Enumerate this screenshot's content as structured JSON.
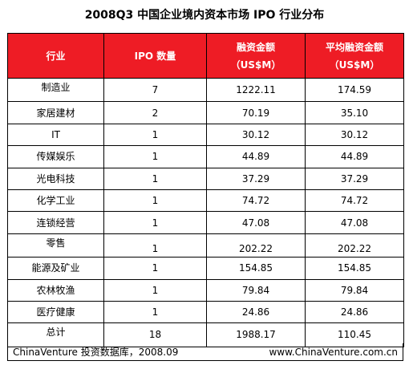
{
  "chart_data": {
    "type": "table",
    "title": "2008Q3 中国企业境内资本市场 IPO 行业分布",
    "columns": [
      {
        "line1": "行业",
        "line2": ""
      },
      {
        "line1": "IPO 数量",
        "line2": ""
      },
      {
        "line1": "融资金额",
        "line2": "（US$M）"
      },
      {
        "line1": "平均融资金额",
        "line2": "（US$M）"
      }
    ],
    "rows": [
      {
        "industry": "制造业",
        "count": "7",
        "amount": "1222.11",
        "average": "174.59"
      },
      {
        "industry": "家居建材",
        "count": "2",
        "amount": "70.19",
        "average": "35.10"
      },
      {
        "industry": "IT",
        "count": "1",
        "amount": "30.12",
        "average": "30.12"
      },
      {
        "industry": "传媒娱乐",
        "count": "1",
        "amount": "44.89",
        "average": "44.89"
      },
      {
        "industry": "光电科技",
        "count": "1",
        "amount": "37.29",
        "average": "37.29"
      },
      {
        "industry": "化学工业",
        "count": "1",
        "amount": "74.72",
        "average": "74.72"
      },
      {
        "industry": "连锁经营",
        "count": "1",
        "amount": "47.08",
        "average": "47.08"
      },
      {
        "industry": "零售",
        "count": "1",
        "amount": "202.22",
        "average": "202.22"
      },
      {
        "industry": "能源及矿业",
        "count": "1",
        "amount": "154.85",
        "average": "154.85"
      },
      {
        "industry": "农林牧渔",
        "count": "1",
        "amount": "79.84",
        "average": "79.84"
      },
      {
        "industry": "医疗健康",
        "count": "1",
        "amount": "24.86",
        "average": "24.86"
      },
      {
        "industry": "总计",
        "count": "18",
        "amount": "1988.17",
        "average": "110.45"
      }
    ],
    "header_color": "#ee1c25"
  },
  "footer": {
    "source": "ChinaVenture 投资数据库，2008.09",
    "website": "www.ChinaVenture.com.cn"
  }
}
